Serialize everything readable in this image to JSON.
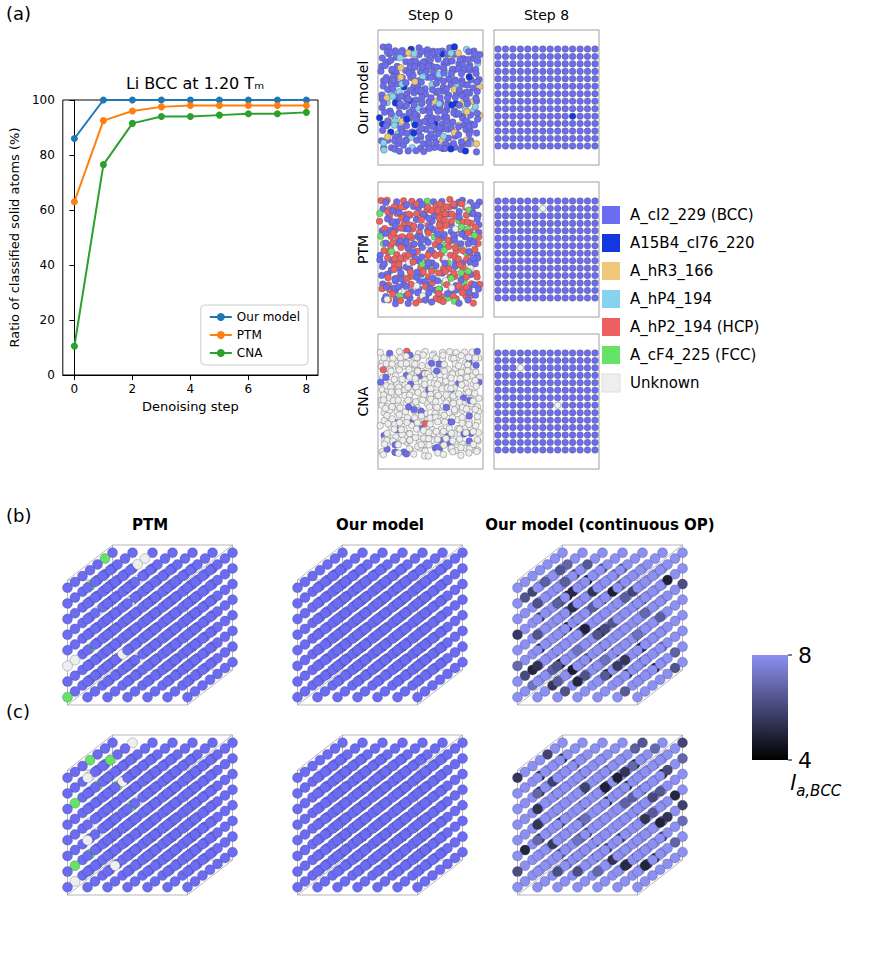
{
  "panel_labels": [
    "(a)",
    "(b)",
    "(c)"
  ],
  "chart_data": {
    "type": "line",
    "title": "Li BCC at 1.20 Tₘ",
    "x_label": "Denoising step",
    "y_label": "Ratio of classified solid atoms (%)",
    "x": [
      0,
      1,
      2,
      3,
      4,
      5,
      6,
      7,
      8
    ],
    "series": [
      {
        "name": "Our model",
        "color": "#1f77b4",
        "values": [
          86,
          100,
          100,
          100,
          100,
          100,
          100,
          100,
          100
        ]
      },
      {
        "name": "PTM",
        "color": "#ff7f0e",
        "values": [
          63,
          92.5,
          96,
          97.5,
          98,
          98,
          98,
          98,
          98
        ]
      },
      {
        "name": "CNA",
        "color": "#2ca02c",
        "values": [
          10.5,
          76.5,
          91.5,
          94,
          94,
          94.5,
          95,
          95,
          95.5
        ]
      }
    ],
    "xlim": [
      -0.4,
      8.4
    ],
    "xticks": [
      0,
      2,
      4,
      6,
      8
    ],
    "ylim": [
      0,
      100
    ],
    "yticks": [
      0,
      20,
      40,
      60,
      80,
      100
    ],
    "legend": "lower right",
    "grid": false,
    "marker": "circle"
  },
  "snapshots": {
    "columns": [
      "Step 0",
      "Step 8"
    ],
    "rows": [
      "Our model",
      "PTM",
      "CNA"
    ]
  },
  "class_legend": [
    {
      "name": "A_cI2_229 (BCC)",
      "color": "#6b6cf2"
    },
    {
      "name": "A15B4_cI76_220",
      "color": "#1437e0"
    },
    {
      "name": "A_hR3_166",
      "color": "#eec77a"
    },
    {
      "name": "A_hP4_194",
      "color": "#86d3f0"
    },
    {
      "name": "A_hP2_194 (HCP)",
      "color": "#ee6060"
    },
    {
      "name": "A_cF4_225 (FCC)",
      "color": "#66e266"
    },
    {
      "name": "Unknown",
      "color": "#eeeeee"
    }
  ],
  "renderings": {
    "columns": [
      "PTM",
      "Our model",
      "Our model (continuous OP)"
    ],
    "colorbar": {
      "range": [
        4,
        8
      ],
      "ticks": [
        4,
        8
      ],
      "label": "l",
      "label_subscript": "a,BCC"
    }
  }
}
